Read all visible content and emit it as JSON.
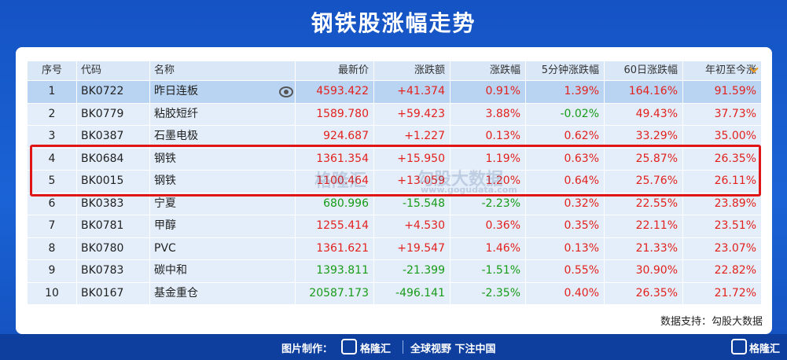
{
  "header": {
    "title": "钢铁股涨幅走势"
  },
  "table": {
    "columns": [
      "序号",
      "代码",
      "名称",
      "最新价",
      "涨跌额",
      "涨跌幅",
      "5分钟涨跌幅",
      "60日涨跌幅",
      "年初至今涨"
    ],
    "rows": [
      [
        "1",
        "BK0722",
        "昨日连板",
        "4593.422",
        "+41.374",
        "0.91%",
        "1.39%",
        "164.16%",
        "91.59%"
      ],
      [
        "2",
        "BK0779",
        "粘胶短纤",
        "1589.780",
        "+59.423",
        "3.88%",
        "-0.02%",
        "49.43%",
        "37.73%"
      ],
      [
        "3",
        "BK0387",
        "石墨电极",
        "924.687",
        "+1.227",
        "0.13%",
        "0.62%",
        "33.29%",
        "35.00%"
      ],
      [
        "4",
        "BK0684",
        "钢铁",
        "1361.354",
        "+15.950",
        "1.19%",
        "0.63%",
        "25.87%",
        "26.35%"
      ],
      [
        "5",
        "BK0015",
        "钢铁",
        "1100.464",
        "+13.059",
        "1.20%",
        "0.64%",
        "25.76%",
        "26.11%"
      ],
      [
        "6",
        "BK0383",
        "宁夏",
        "680.996",
        "-15.548",
        "-2.23%",
        "0.32%",
        "22.55%",
        "23.89%"
      ],
      [
        "7",
        "BK0781",
        "甲醇",
        "1255.414",
        "+4.530",
        "0.36%",
        "0.35%",
        "22.11%",
        "23.51%"
      ],
      [
        "8",
        "BK0780",
        "PVC",
        "1361.621",
        "+19.547",
        "1.46%",
        "0.13%",
        "21.33%",
        "23.07%"
      ],
      [
        "9",
        "BK0783",
        "碳中和",
        "1393.811",
        "-21.399",
        "-1.51%",
        "0.55%",
        "30.90%",
        "22.82%"
      ],
      [
        "10",
        "BK0167",
        "基金重仓",
        "20587.173",
        "-496.141",
        "-2.35%",
        "0.40%",
        "26.35%",
        "21.72%"
      ]
    ]
  },
  "watermark": [
    "格隆汇",
    "勾股大数据",
    "www.gogudata.com"
  ],
  "footer": {
    "source": "数据支持：勾股大数据"
  },
  "bottom_bar": {
    "credit": "图片制作：",
    "brand": "格隆汇",
    "slogan": "全球视野 下注中国",
    "corner_brand": "格隆汇"
  }
}
